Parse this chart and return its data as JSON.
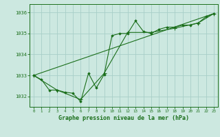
{
  "title": "Graphe pression niveau de la mer (hPa)",
  "bg_color": "#cce8e0",
  "grid_color": "#a8cec8",
  "line_color": "#1a6e1a",
  "xlim": [
    -0.5,
    23.5
  ],
  "ylim": [
    1031.5,
    1036.4
  ],
  "yticks": [
    1032,
    1033,
    1034,
    1035,
    1036
  ],
  "xticks": [
    0,
    1,
    2,
    3,
    4,
    5,
    6,
    7,
    8,
    9,
    10,
    11,
    12,
    13,
    14,
    15,
    16,
    17,
    18,
    19,
    20,
    21,
    22,
    23
  ],
  "series1_x": [
    0,
    1,
    2,
    3,
    4,
    5,
    6,
    7,
    8,
    9,
    10,
    11,
    12,
    13,
    14,
    15,
    16,
    17,
    18,
    19,
    20,
    21,
    22,
    23
  ],
  "series1_y": [
    1033.0,
    1032.8,
    1032.3,
    1032.3,
    1032.2,
    1032.15,
    1031.75,
    1033.1,
    1032.4,
    1033.05,
    1034.9,
    1035.0,
    1035.0,
    1035.6,
    1035.1,
    1035.0,
    1035.2,
    1035.3,
    1035.3,
    1035.4,
    1035.4,
    1035.5,
    1035.8,
    1035.95
  ],
  "series2_x": [
    0,
    3,
    6,
    9,
    12,
    15,
    18,
    21,
    23
  ],
  "series2_y": [
    1033.0,
    1032.3,
    1031.85,
    1033.1,
    1035.05,
    1035.05,
    1035.25,
    1035.5,
    1035.95
  ],
  "series3_x": [
    0,
    23
  ],
  "series3_y": [
    1033.0,
    1035.95
  ]
}
